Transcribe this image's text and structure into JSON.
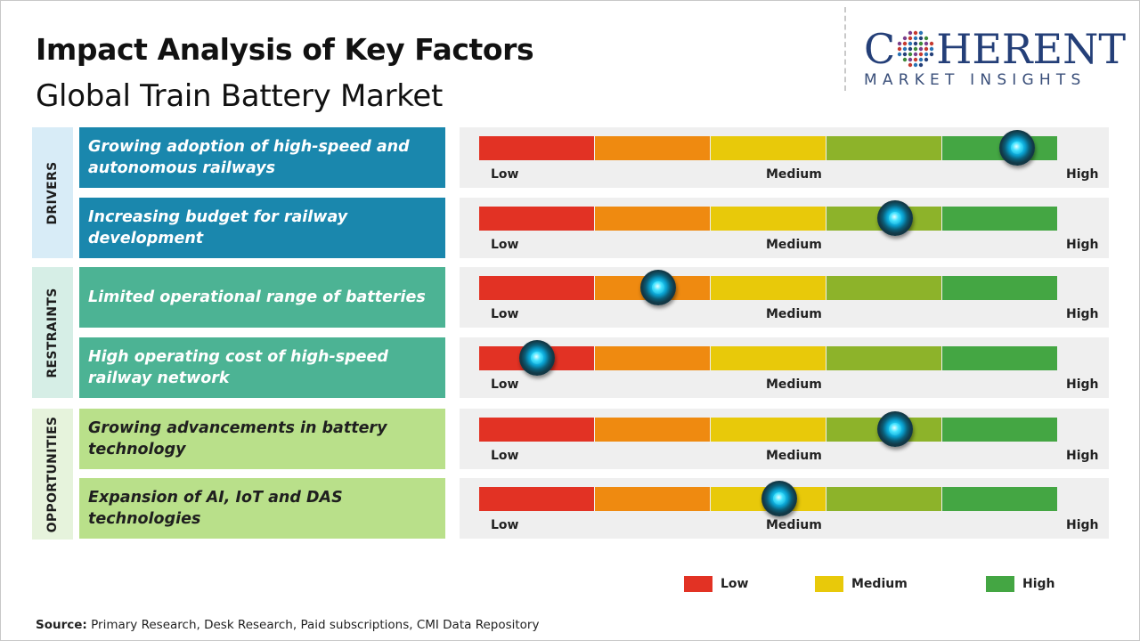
{
  "title": "Impact Analysis of Key Factors",
  "subtitle": "Global Train Battery Market",
  "logo": {
    "main_prefix": "C",
    "main_suffix": "HERENT",
    "tagline": "MARKET INSIGHTS"
  },
  "scale_labels": {
    "low": "Low",
    "medium": "Medium",
    "high": "High"
  },
  "colors": {
    "segments": [
      "#e23224",
      "#ef8a10",
      "#e8c90a",
      "#8db32a",
      "#44a643"
    ],
    "drivers_cat": "#d8ecf7",
    "drivers_factor": "#1a87ad",
    "restraints_cat": "#d6eee6",
    "restraints_factor": "#4cb394",
    "opportunities_cat": "#e6f3dc",
    "opportunities_factor": "#b9e08a"
  },
  "categories": [
    {
      "label": "DRIVERS"
    },
    {
      "label": "RESTRAINTS"
    },
    {
      "label": "OPPORTUNITIES"
    }
  ],
  "chart_data": {
    "type": "table",
    "title": "Impact Analysis of Key Factors",
    "subtitle": "Global Train Battery Market",
    "scale": [
      "Low",
      "Medium",
      "High"
    ],
    "factors": [
      {
        "category": "DRIVERS",
        "text": "Growing adoption of high-speed and autonomous railways",
        "impact": 0.93
      },
      {
        "category": "DRIVERS",
        "text": "Increasing budget for railway development",
        "impact": 0.72
      },
      {
        "category": "RESTRAINTS",
        "text": "Limited operational range of batteries",
        "impact": 0.31
      },
      {
        "category": "RESTRAINTS",
        "text": "High operating cost of high-speed railway network",
        "impact": 0.1
      },
      {
        "category": "OPPORTUNITIES",
        "text": "Growing advancements in battery technology",
        "impact": 0.72
      },
      {
        "category": "OPPORTUNITIES",
        "text": "Expansion of AI, IoT and DAS technologies",
        "impact": 0.52
      }
    ]
  },
  "legend": [
    {
      "label": "Low",
      "color": "#e23224"
    },
    {
      "label": "Medium",
      "color": "#e8c90a"
    },
    {
      "label": "High",
      "color": "#44a643"
    }
  ],
  "source": {
    "prefix": "Source:",
    "text": "Primary Research, Desk Research, Paid subscriptions, CMI Data Repository"
  }
}
